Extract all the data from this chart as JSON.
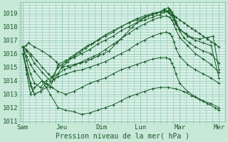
{
  "xlabel": "Pression niveau de la mer( hPa )",
  "bg_color": "#c8e8d8",
  "plot_bg_color": "#d8f0e8",
  "line_color": "#1a5c28",
  "grid_color": "#90c8b0",
  "tick_label_color": "#1a5c28",
  "label_color": "#1a5c28",
  "ylim": [
    1011.0,
    1019.8
  ],
  "yticks": [
    1011,
    1012,
    1013,
    1014,
    1015,
    1016,
    1017,
    1018,
    1019
  ],
  "xtick_labels": [
    "Sam",
    "Jeu",
    "Dim",
    "Lun",
    "Mar",
    "Mer"
  ],
  "xtick_positions": [
    0,
    1,
    2,
    3,
    4,
    5
  ],
  "lines": [
    {
      "x": [
        0.0,
        0.08,
        0.15,
        0.3,
        0.5,
        0.7,
        0.85,
        1.0,
        1.15,
        1.3,
        1.45,
        1.6,
        1.75,
        1.9,
        2.05,
        2.2,
        2.4,
        2.6,
        2.8,
        3.0,
        3.2,
        3.4,
        3.5,
        3.6,
        3.7,
        3.8,
        3.85,
        3.9,
        4.0,
        4.1,
        4.2,
        4.3,
        4.4,
        4.5,
        4.6,
        4.7,
        4.8,
        4.9,
        5.0
      ],
      "y": [
        1016.5,
        1016.6,
        1016.8,
        1016.5,
        1016.2,
        1015.8,
        1015.4,
        1015.0,
        1015.1,
        1015.2,
        1015.3,
        1015.4,
        1015.6,
        1015.8,
        1016.0,
        1016.2,
        1016.8,
        1017.4,
        1018.0,
        1018.5,
        1018.8,
        1019.0,
        1019.1,
        1019.2,
        1019.1,
        1018.9,
        1018.8,
        1018.7,
        1018.5,
        1018.3,
        1018.1,
        1017.9,
        1017.7,
        1017.5,
        1017.3,
        1017.1,
        1016.9,
        1016.7,
        1016.5
      ]
    },
    {
      "x": [
        0.0,
        0.1,
        0.2,
        0.35,
        0.5,
        0.65,
        0.8,
        1.0,
        1.15,
        1.3,
        1.45,
        1.6,
        1.75,
        1.9,
        2.1,
        2.3,
        2.5,
        2.7,
        2.9,
        3.1,
        3.3,
        3.5,
        3.6,
        3.65,
        3.7,
        3.75,
        3.8,
        3.85,
        3.9,
        4.0,
        4.15,
        4.3,
        4.5,
        4.7,
        4.85,
        5.0
      ],
      "y": [
        1016.5,
        1016.3,
        1016.0,
        1015.5,
        1015.0,
        1014.5,
        1014.1,
        1015.0,
        1015.4,
        1015.8,
        1016.1,
        1016.4,
        1016.7,
        1017.0,
        1017.3,
        1017.6,
        1018.0,
        1018.3,
        1018.6,
        1018.8,
        1019.0,
        1019.1,
        1019.2,
        1019.2,
        1019.1,
        1019.0,
        1018.8,
        1018.5,
        1018.2,
        1017.8,
        1017.5,
        1017.2,
        1017.1,
        1017.2,
        1017.3,
        1014.8
      ]
    },
    {
      "x": [
        0.0,
        0.1,
        0.2,
        0.3,
        0.5,
        0.7,
        0.9,
        1.0,
        1.1,
        1.2,
        1.35,
        1.5,
        1.65,
        1.8,
        1.95,
        2.1,
        2.3,
        2.5,
        2.7,
        2.9,
        3.1,
        3.3,
        3.5,
        3.6,
        3.7,
        3.75,
        3.8,
        3.85,
        3.9,
        4.0,
        4.2,
        4.4,
        4.6,
        4.8,
        5.0
      ],
      "y": [
        1016.5,
        1016.2,
        1015.8,
        1015.3,
        1014.6,
        1014.0,
        1015.0,
        1015.2,
        1015.4,
        1015.7,
        1016.0,
        1016.3,
        1016.6,
        1016.8,
        1017.1,
        1017.4,
        1017.7,
        1018.0,
        1018.3,
        1018.5,
        1018.7,
        1018.9,
        1019.1,
        1019.3,
        1019.4,
        1019.3,
        1019.1,
        1018.8,
        1018.4,
        1017.8,
        1017.3,
        1017.0,
        1016.8,
        1016.6,
        1014.2
      ]
    },
    {
      "x": [
        0.0,
        0.1,
        0.2,
        0.3,
        0.5,
        0.7,
        0.9,
        1.1,
        1.3,
        1.5,
        1.7,
        1.9,
        2.1,
        2.3,
        2.5,
        2.7,
        2.9,
        3.1,
        3.3,
        3.5,
        3.6,
        3.7,
        3.75,
        3.8,
        3.85,
        3.9,
        4.0,
        4.1,
        4.25,
        4.4,
        4.6,
        4.8,
        5.0
      ],
      "y": [
        1016.5,
        1015.8,
        1015.2,
        1014.7,
        1014.0,
        1013.5,
        1015.2,
        1015.5,
        1015.7,
        1016.0,
        1016.3,
        1016.7,
        1017.0,
        1017.3,
        1017.7,
        1018.0,
        1018.3,
        1018.5,
        1018.7,
        1018.9,
        1019.1,
        1019.2,
        1019.2,
        1019.0,
        1018.7,
        1018.3,
        1017.7,
        1017.2,
        1016.8,
        1016.5,
        1016.2,
        1016.0,
        1015.3
      ]
    },
    {
      "x": [
        0.0,
        0.1,
        0.2,
        0.3,
        0.45,
        0.6,
        0.75,
        0.9,
        1.05,
        1.2,
        1.35,
        1.5,
        1.65,
        1.8,
        1.95,
        2.1,
        2.3,
        2.5,
        2.7,
        2.9,
        3.1,
        3.3,
        3.5,
        3.65,
        3.75,
        3.8,
        3.85,
        3.9,
        4.0,
        4.2,
        4.4,
        4.6,
        4.8,
        5.0
      ],
      "y": [
        1016.5,
        1015.5,
        1014.5,
        1013.8,
        1013.5,
        1014.0,
        1014.3,
        1014.5,
        1014.8,
        1015.0,
        1015.2,
        1015.4,
        1015.6,
        1015.8,
        1016.0,
        1016.3,
        1016.7,
        1017.1,
        1017.5,
        1017.9,
        1018.2,
        1018.5,
        1018.7,
        1018.8,
        1018.7,
        1018.5,
        1018.2,
        1017.8,
        1017.2,
        1016.6,
        1016.0,
        1015.6,
        1015.2,
        1014.6
      ]
    },
    {
      "x": [
        0.0,
        0.1,
        0.2,
        0.3,
        0.45,
        0.6,
        0.75,
        0.9,
        1.1,
        1.3,
        1.5,
        1.7,
        1.9,
        2.1,
        2.3,
        2.5,
        2.7,
        2.9,
        3.1,
        3.3,
        3.5,
        3.65,
        3.75,
        3.8,
        3.85,
        3.9,
        4.0,
        4.2,
        4.4,
        4.6,
        4.8,
        5.0
      ],
      "y": [
        1016.0,
        1015.0,
        1013.8,
        1013.0,
        1013.2,
        1013.5,
        1014.0,
        1014.3,
        1014.5,
        1014.7,
        1014.8,
        1015.0,
        1015.2,
        1015.4,
        1015.7,
        1016.0,
        1016.3,
        1016.7,
        1017.0,
        1017.3,
        1017.5,
        1017.6,
        1017.5,
        1017.3,
        1016.9,
        1016.4,
        1015.8,
        1015.2,
        1014.8,
        1014.5,
        1014.2,
        1013.8
      ]
    },
    {
      "x": [
        0.0,
        0.1,
        0.2,
        0.3,
        0.45,
        0.6,
        0.75,
        0.9,
        1.1,
        1.3,
        1.5,
        1.7,
        1.9,
        2.1,
        2.3,
        2.5,
        2.7,
        2.9,
        3.1,
        3.3,
        3.5,
        3.65,
        3.75,
        3.8,
        3.85,
        3.9,
        4.0,
        4.2,
        4.4,
        4.6,
        4.8,
        5.0
      ],
      "y": [
        1016.0,
        1014.8,
        1013.6,
        1013.0,
        1013.2,
        1013.8,
        1013.5,
        1013.2,
        1013.0,
        1013.2,
        1013.5,
        1013.8,
        1014.0,
        1014.2,
        1014.5,
        1014.8,
        1015.0,
        1015.2,
        1015.4,
        1015.6,
        1015.7,
        1015.7,
        1015.6,
        1015.3,
        1015.0,
        1014.5,
        1013.8,
        1013.2,
        1012.8,
        1012.5,
        1012.3,
        1012.0
      ]
    },
    {
      "x": [
        0.0,
        0.1,
        0.2,
        0.3,
        0.5,
        0.7,
        0.9,
        1.1,
        1.3,
        1.5,
        1.7,
        1.9,
        2.1,
        2.3,
        2.5,
        2.7,
        2.9,
        3.1,
        3.3,
        3.5,
        3.7,
        3.9,
        4.1,
        4.3,
        4.5,
        4.7,
        4.9,
        5.0
      ],
      "y": [
        1016.5,
        1014.5,
        1013.0,
        1013.5,
        1014.0,
        1013.0,
        1012.0,
        1011.8,
        1011.7,
        1011.5,
        1011.6,
        1011.8,
        1012.0,
        1012.2,
        1012.5,
        1012.8,
        1013.0,
        1013.2,
        1013.4,
        1013.5,
        1013.5,
        1013.4,
        1013.2,
        1012.9,
        1012.6,
        1012.3,
        1012.0,
        1011.8
      ]
    }
  ]
}
